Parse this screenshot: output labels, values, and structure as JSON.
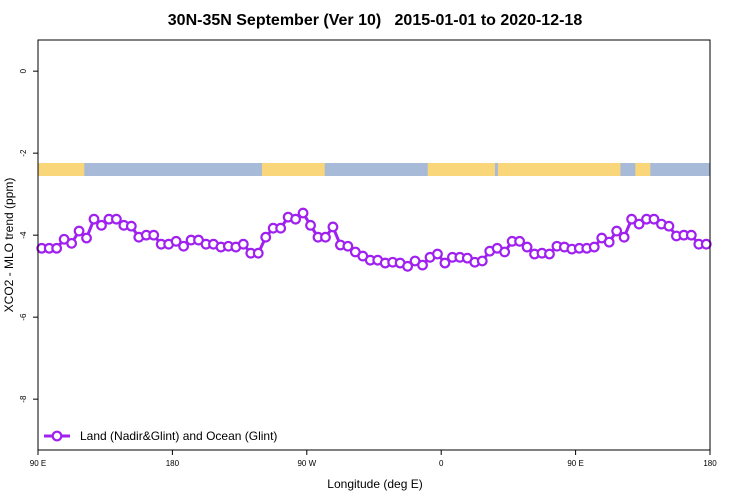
{
  "chart_data": {
    "type": "line",
    "title": "30N-35N September (Ver 10)   2015-01-01 to 2020-12-18",
    "xlabel": "Longitude (deg E)",
    "ylabel": "XCO2 - MLO trend (ppm)",
    "xlim": [
      90,
      540
    ],
    "ylim": [
      -9.24,
      0.76
    ],
    "xticks": [
      {
        "value": 90,
        "label": "90 E"
      },
      {
        "value": 180,
        "label": "180"
      },
      {
        "value": 270,
        "label": "90 W"
      },
      {
        "value": 360,
        "label": "0"
      },
      {
        "value": 450,
        "label": "90 E"
      },
      {
        "value": 540,
        "label": "180"
      }
    ],
    "yticks": [
      0,
      -2,
      -4,
      -6,
      -8
    ],
    "grid": false,
    "legend": "bottom-left",
    "land_lon": [
      [
        90,
        121
      ],
      [
        240,
        282
      ],
      [
        351,
        396
      ],
      [
        398,
        480
      ],
      [
        490,
        500
      ]
    ],
    "land_color": "#f9d67a",
    "ocean_color": "#a7bbd8",
    "x": [
      92.5,
      97.5,
      102.5,
      107.5,
      112.5,
      117.5,
      122.5,
      127.5,
      132.5,
      137.5,
      142.5,
      147.5,
      152.5,
      157.5,
      162.5,
      167.5,
      172.5,
      177.5,
      182.5,
      187.5,
      192.5,
      197.5,
      202.5,
      207.5,
      212.5,
      217.5,
      222.5,
      227.5,
      232.5,
      237.5,
      242.5,
      247.5,
      252.5,
      257.5,
      262.5,
      267.5,
      272.5,
      277.5,
      282.5,
      287.5,
      292.5,
      297.5,
      302.5,
      307.5,
      312.5,
      317.5,
      322.5,
      327.5,
      332.5,
      337.5,
      342.5,
      347.5,
      352.5,
      357.5,
      362.5,
      367.5,
      372.5,
      377.5,
      382.5,
      387.5,
      392.5,
      397.5,
      402.5,
      407.5,
      412.5,
      417.5,
      422.5,
      427.5,
      432.5,
      437.5,
      442.5,
      447.5,
      452.5,
      457.5,
      462.5,
      467.5,
      472.5,
      477.5,
      482.5,
      487.5,
      492.5,
      497.5,
      502.5,
      507.5,
      512.5,
      517.5,
      522.5,
      527.5,
      532.5,
      537.5
    ],
    "series": [
      {
        "name": "Land (Nadir&Glint) and Ocean (Glint)",
        "color": "#a020f0",
        "values": [
          -4.32,
          -4.32,
          -4.32,
          -4.1,
          -4.2,
          -3.9,
          -4.07,
          -3.61,
          -3.76,
          -3.61,
          -3.61,
          -3.76,
          -3.78,
          -4.05,
          -4.0,
          -4.0,
          -4.22,
          -4.22,
          -4.15,
          -4.27,
          -4.12,
          -4.12,
          -4.22,
          -4.22,
          -4.29,
          -4.27,
          -4.29,
          -4.22,
          -4.44,
          -4.44,
          -4.05,
          -3.83,
          -3.83,
          -3.56,
          -3.61,
          -3.46,
          -3.76,
          -4.05,
          -4.05,
          -3.8,
          -4.24,
          -4.27,
          -4.41,
          -4.51,
          -4.61,
          -4.61,
          -4.68,
          -4.66,
          -4.68,
          -4.76,
          -4.63,
          -4.73,
          -4.54,
          -4.46,
          -4.68,
          -4.54,
          -4.54,
          -4.56,
          -4.66,
          -4.63,
          -4.39,
          -4.32,
          -4.41,
          -4.15,
          -4.15,
          -4.29,
          -4.46,
          -4.44,
          -4.46,
          -4.27,
          -4.29,
          -4.34,
          -4.32,
          -4.32,
          -4.29,
          -4.07,
          -4.17,
          -3.9,
          -4.05,
          -3.61,
          -3.73,
          -3.61,
          -3.61,
          -3.73,
          -3.78,
          -4.02,
          -4.0,
          -4.0,
          -4.22,
          -4.22
        ]
      }
    ]
  }
}
